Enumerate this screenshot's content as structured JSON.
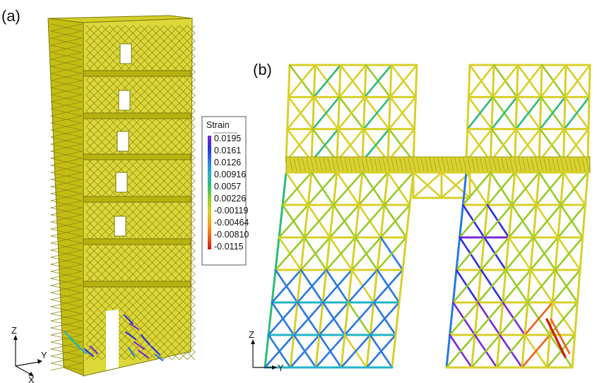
{
  "panels": {
    "a": {
      "label": "(a)"
    },
    "b": {
      "label": "(b)"
    }
  },
  "axes_a": {
    "z": "Z",
    "y": "Y",
    "x": "X"
  },
  "axes_b": {
    "z": "Z",
    "y": "Y"
  },
  "legend": {
    "title": "Strain",
    "values": [
      "0.0195",
      "0.0161",
      "0.0126",
      "0.00916",
      "0.0057",
      "0.00226",
      "-0.00119",
      "-0.00464",
      "-0.00810",
      "-0.0115"
    ],
    "colors": [
      "#7a2ad8",
      "#3030e0",
      "#2878e0",
      "#22b4c8",
      "#2cbc78",
      "#98cc28",
      "#d8d028",
      "#f4a21c",
      "#f06018",
      "#d01818"
    ]
  },
  "colors": {
    "structure": "#c8c214",
    "structure_dark": "#8f8a10",
    "member": "#d9d52e"
  }
}
